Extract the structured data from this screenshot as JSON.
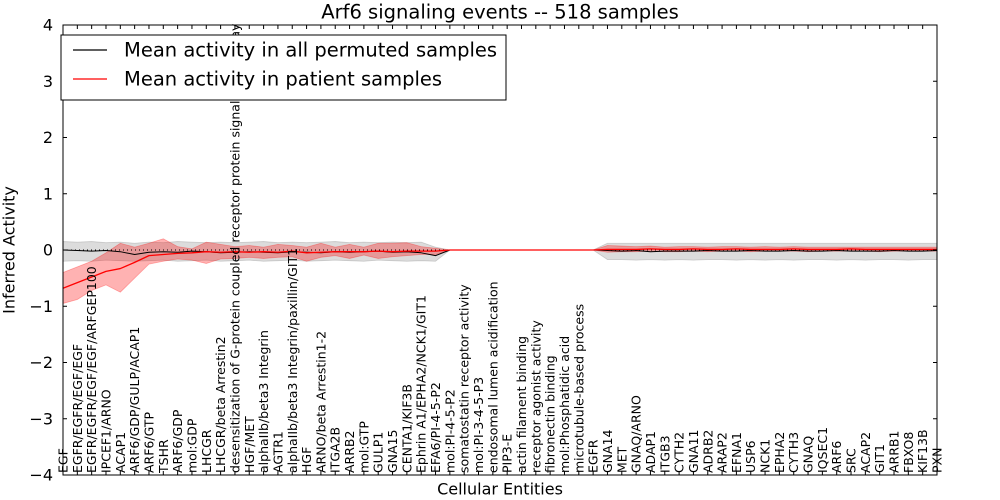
{
  "chart_data": {
    "type": "line",
    "title": "Arf6 signaling events -- 518 samples",
    "xlabel": "Cellular Entities",
    "ylabel": "Inferred Activity",
    "ylim": [
      -4,
      4
    ],
    "yticks": [
      4,
      3,
      2,
      1,
      0,
      -1,
      -2,
      -3,
      -4
    ],
    "y_tick_labels": [
      "4",
      "3",
      "2",
      "1",
      "0",
      "−1",
      "−2",
      "−3",
      "−4"
    ],
    "grid": false,
    "legend": {
      "position": "upper-left"
    },
    "reference_line": {
      "y": 0,
      "style": "dotted",
      "color": "#000000"
    },
    "categories": [
      "EGF",
      "EGFR/EGFR/EGF/EGF",
      "EGFR/EGFR/EGF/EGF/ARFGEP100",
      "IPCEF1/ARNO",
      "ACAP1",
      "ARF6/GDP/GULP/ACAP1",
      "ARF6/GTP",
      "TSHR",
      "ARF6/GDP",
      "mol:GDP",
      "LHCGR",
      "LHCGR/beta Arrestin2",
      "desensitization of G-protein coupled receptor protein signaling pathway",
      "HGF/MET",
      "alphaIIb/beta3 Integrin",
      "AGTR1",
      "alphaIIb/beta3 Integrin/paxillin/GIT1",
      "HGF",
      "ARNO/beta Arrestin1-2",
      "ITGA2B",
      "ARRB2",
      "mol:GTP",
      "GULP1",
      "GNA15",
      "CENTA1/KIF3B",
      "Ephrin A1/EPHA2/NCK1/GIT1",
      "EFA6/PI-4-5-P2",
      "mol:PI-4-5-P2",
      "somatostatin receptor activity",
      "mol:PI-3-4-5-P3",
      "endosomal lumen acidification",
      "PIP3-E",
      "actin filament binding",
      "receptor agonist activity",
      "fibronectin binding",
      "mol:Phosphatidic acid",
      "microtubule-based process",
      "EGFR",
      "GNA14",
      "MET",
      "GNAQ/ARNO",
      "ADAP1",
      "ITGB3",
      "CYTH2",
      "GNA11",
      "ADRB2",
      "ARAP2",
      "EFNA1",
      "USP6",
      "NCK1",
      "EPHA2",
      "CYTH3",
      "GNAQ",
      "IQSEC1",
      "ARF6",
      "SRC",
      "ACAP2",
      "GIT1",
      "ARRB1",
      "FBXO8",
      "KIF13B",
      "PXN"
    ],
    "series": [
      {
        "name": "Mean activity in all permuted samples",
        "color": "#000000",
        "band_color": "#808080",
        "values": [
          0.0,
          -0.01,
          -0.02,
          -0.01,
          -0.03,
          -0.08,
          -0.04,
          -0.03,
          -0.04,
          -0.02,
          -0.03,
          -0.05,
          -0.04,
          -0.03,
          -0.04,
          -0.05,
          -0.03,
          -0.04,
          -0.05,
          -0.03,
          -0.04,
          -0.03,
          -0.02,
          -0.04,
          -0.03,
          -0.05,
          -0.1,
          0,
          0,
          0,
          0,
          0,
          0,
          0,
          0,
          0,
          0,
          0,
          -0.01,
          -0.02,
          -0.01,
          -0.03,
          -0.02,
          -0.02,
          -0.02,
          -0.01,
          -0.02,
          -0.02,
          -0.01,
          -0.02,
          -0.02,
          -0.01,
          -0.02,
          -0.02,
          -0.01,
          -0.02,
          -0.02,
          -0.02,
          -0.01,
          -0.02,
          -0.02,
          -0.01
        ],
        "band_lower": [
          -0.2,
          -0.19,
          -0.2,
          -0.18,
          -0.19,
          -0.2,
          -0.19,
          -0.18,
          -0.2,
          -0.19,
          -0.18,
          -0.2,
          -0.19,
          -0.18,
          -0.2,
          -0.19,
          -0.18,
          -0.2,
          -0.19,
          -0.18,
          -0.19,
          -0.2,
          -0.18,
          -0.19,
          -0.2,
          -0.19,
          -0.2,
          0,
          0,
          0,
          0,
          0,
          0,
          0,
          0,
          0,
          0,
          0,
          -0.17,
          -0.17,
          -0.18,
          -0.17,
          -0.18,
          -0.17,
          -0.18,
          -0.17,
          -0.17,
          -0.18,
          -0.17,
          -0.18,
          -0.17,
          -0.18,
          -0.17,
          -0.17,
          -0.18,
          -0.17,
          -0.18,
          -0.17,
          -0.17,
          -0.18,
          -0.17,
          -0.17
        ],
        "band_upper": [
          0.15,
          0.14,
          0.15,
          0.13,
          0.14,
          0.12,
          0.14,
          0.13,
          0.15,
          0.14,
          0.13,
          0.14,
          0.13,
          0.14,
          0.15,
          0.13,
          0.14,
          0.13,
          0.14,
          0.15,
          0.13,
          0.14,
          0.13,
          0.14,
          0.13,
          0.14,
          0.05,
          0,
          0,
          0,
          0,
          0,
          0,
          0,
          0,
          0,
          0,
          0,
          0.12,
          0.12,
          0.12,
          0.12,
          0.12,
          0.12,
          0.12,
          0.12,
          0.12,
          0.12,
          0.12,
          0.12,
          0.12,
          0.12,
          0.12,
          0.12,
          0.12,
          0.12,
          0.12,
          0.12,
          0.12,
          0.12,
          0.12,
          0.12
        ]
      },
      {
        "name": "Mean activity in patient samples",
        "color": "#ff0000",
        "band_color": "#ff0000",
        "values": [
          -0.68,
          -0.58,
          -0.48,
          -0.38,
          -0.33,
          -0.22,
          -0.1,
          -0.08,
          -0.06,
          -0.05,
          -0.03,
          -0.04,
          -0.03,
          -0.04,
          -0.03,
          -0.04,
          -0.02,
          -0.05,
          -0.04,
          -0.03,
          -0.03,
          -0.03,
          -0.02,
          -0.03,
          -0.02,
          -0.02,
          -0.02,
          0,
          0,
          0,
          0,
          0,
          0,
          0,
          0,
          0,
          0,
          0,
          0.01,
          0.01,
          0.01,
          0.02,
          0.01,
          0.01,
          0.02,
          0.01,
          0.01,
          0.02,
          0.01,
          0.01,
          0.01,
          0.02,
          0.01,
          0.01,
          0.01,
          0.02,
          0.01,
          0.01,
          0.01,
          0.01,
          0.01,
          0.01
        ],
        "band_lower": [
          -0.95,
          -0.88,
          -0.72,
          -0.62,
          -0.75,
          -0.5,
          -0.25,
          -0.2,
          -0.16,
          -0.18,
          -0.24,
          -0.16,
          -0.15,
          -0.13,
          -0.15,
          -0.13,
          -0.12,
          -0.2,
          -0.13,
          -0.1,
          -0.15,
          -0.09,
          -0.15,
          -0.12,
          -0.1,
          -0.08,
          -0.08,
          0,
          0,
          0,
          0,
          0,
          0,
          0,
          0,
          0,
          0,
          0,
          -0.04,
          -0.03,
          -0.03,
          -0.02,
          -0.03,
          -0.03,
          -0.02,
          -0.03,
          -0.02,
          -0.02,
          -0.03,
          -0.02,
          -0.02,
          -0.02,
          -0.03,
          -0.02,
          -0.02,
          -0.02,
          -0.02,
          -0.03,
          -0.02,
          -0.02,
          -0.02,
          -0.02
        ],
        "band_upper": [
          -0.4,
          -0.3,
          -0.2,
          -0.05,
          0.12,
          0.05,
          0.12,
          0.2,
          0.06,
          0.02,
          0.14,
          0.1,
          0.06,
          0.08,
          0.05,
          0.1,
          0.08,
          0.05,
          0.12,
          0.05,
          0.1,
          0.05,
          0.12,
          0.12,
          0.13,
          0.06,
          0.03,
          0,
          0,
          0,
          0,
          0,
          0,
          0,
          0,
          0,
          0,
          0,
          0.08,
          0.07,
          0.06,
          0.07,
          0.05,
          0.06,
          0.06,
          0.05,
          0.06,
          0.06,
          0.05,
          0.06,
          0.05,
          0.06,
          0.05,
          0.05,
          0.05,
          0.05,
          0.05,
          0.05,
          0.05,
          0.05,
          0.05,
          0.05
        ]
      }
    ]
  }
}
